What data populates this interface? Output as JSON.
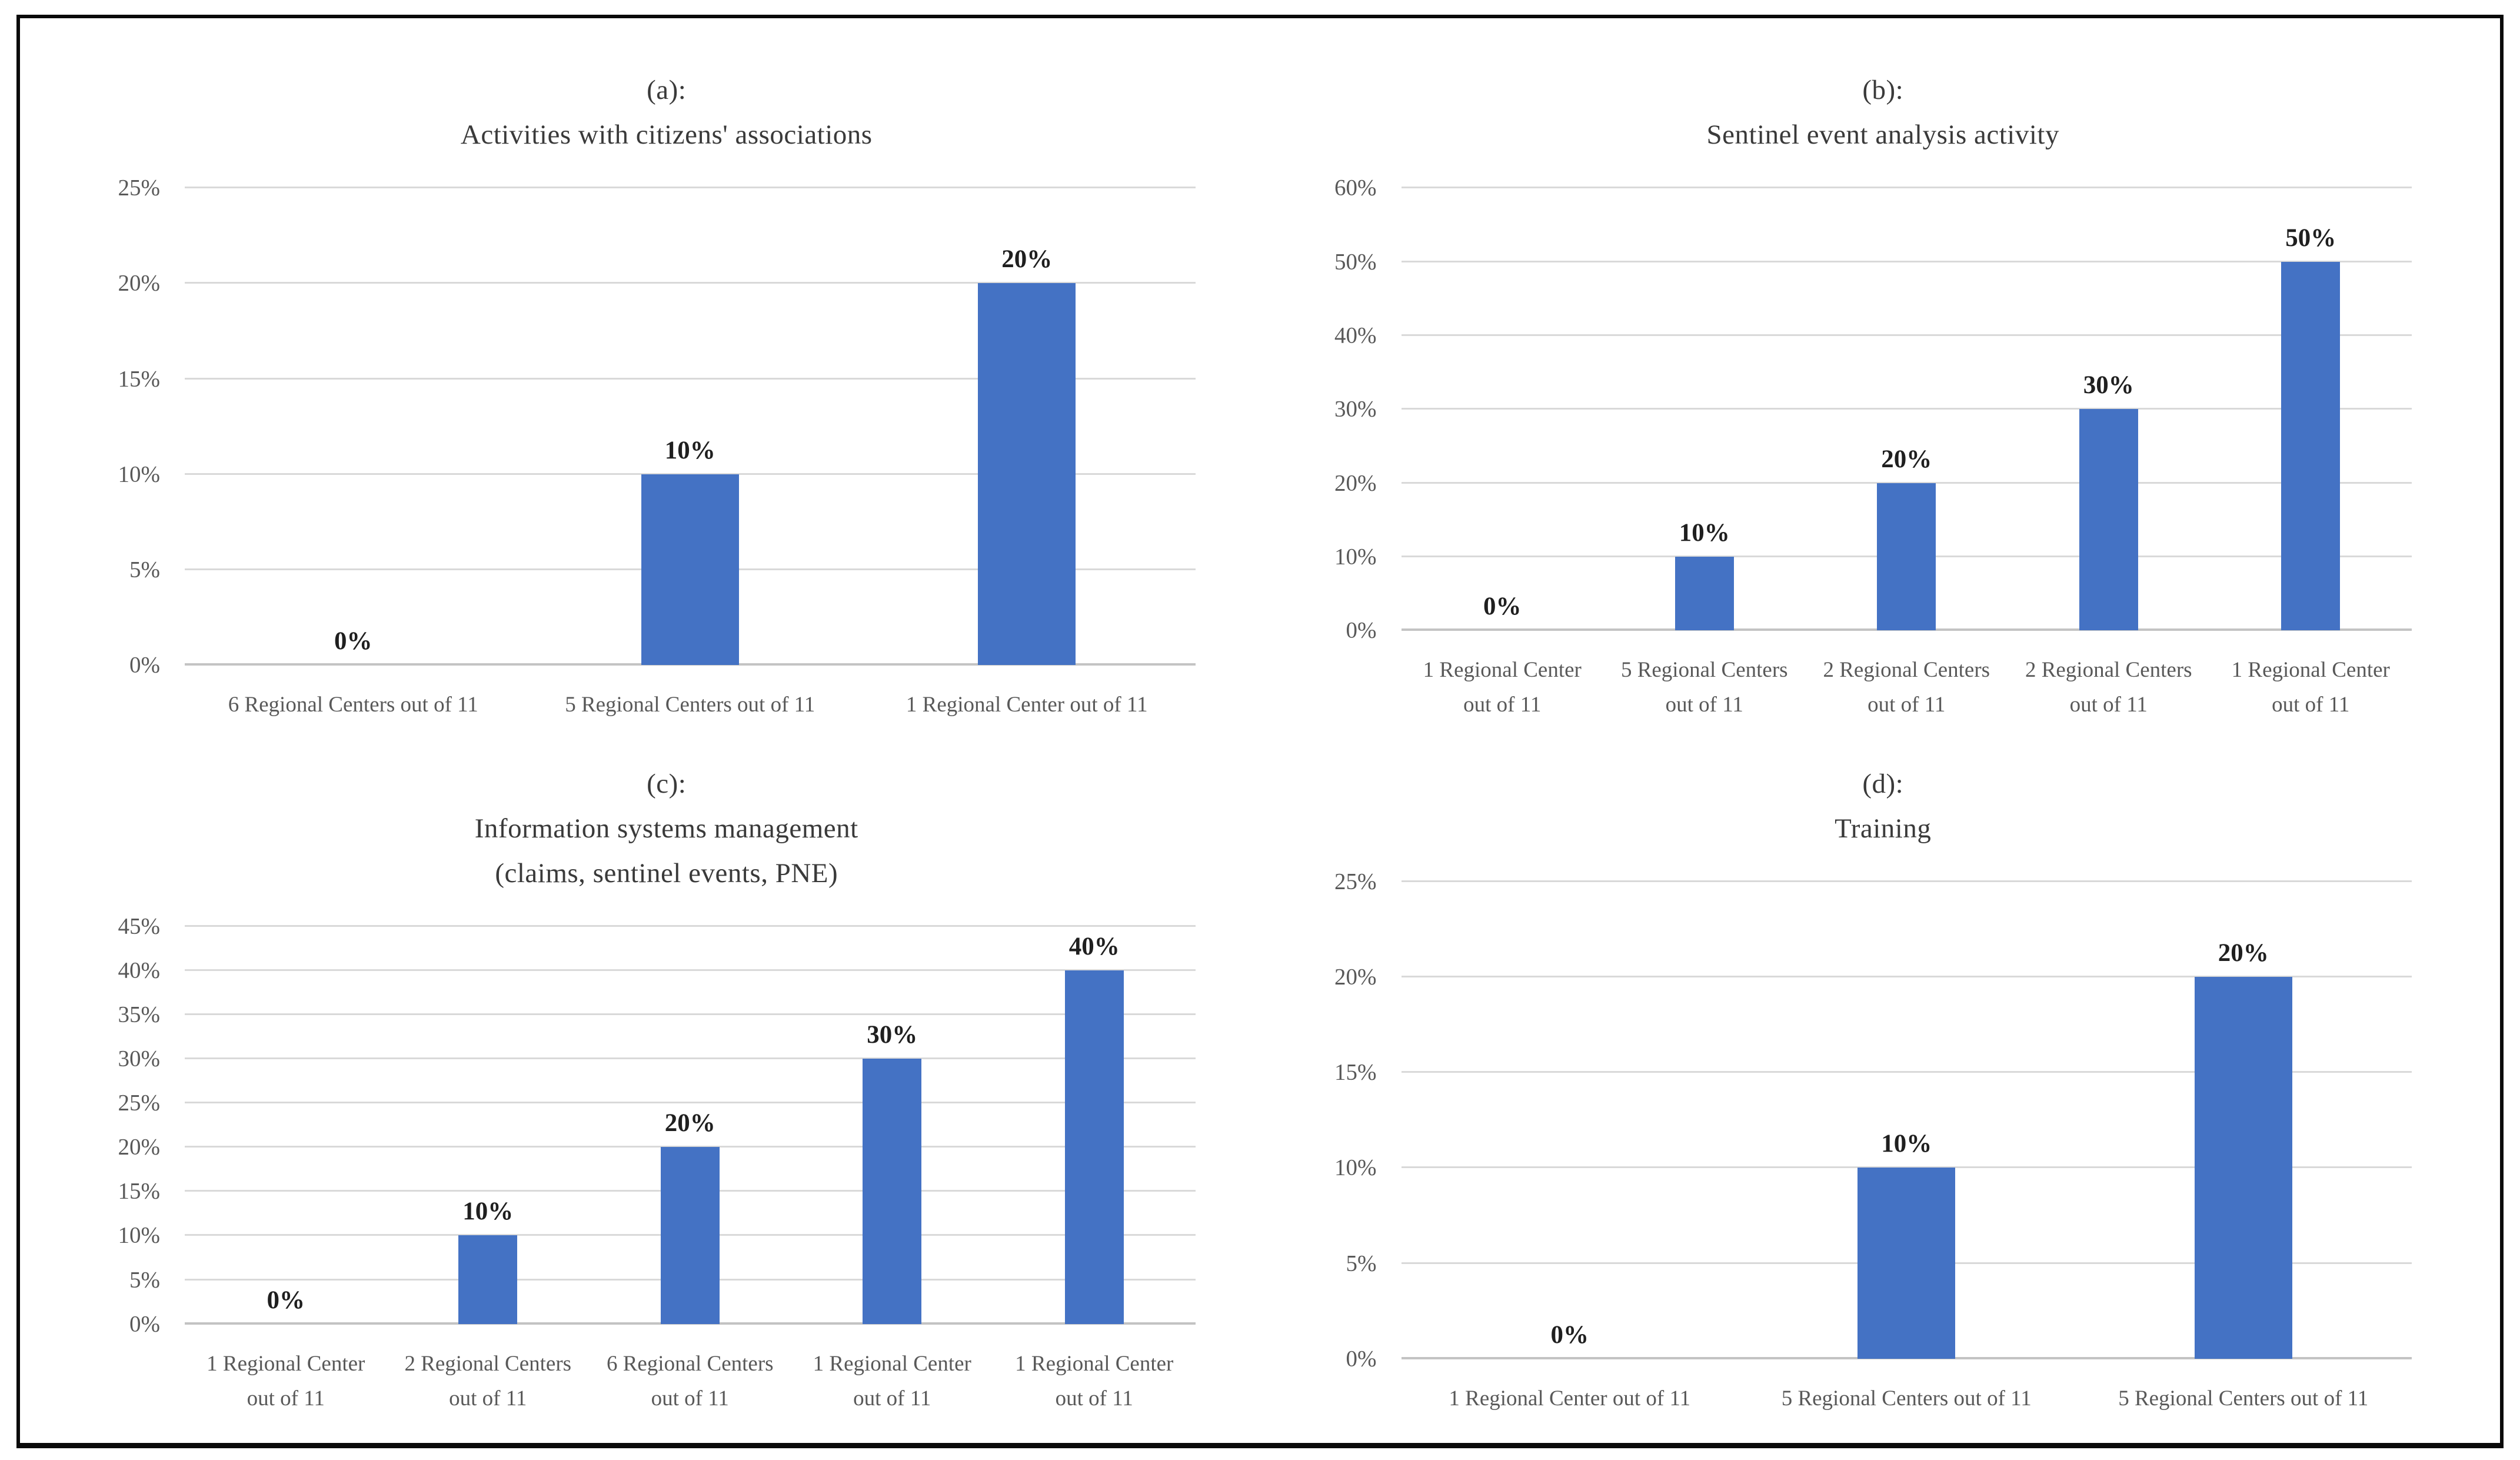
{
  "figure": {
    "background": "#ffffff",
    "border_color": "#0a0a0a"
  },
  "colors": {
    "bar": "#4472C4",
    "gridline": "#D9D9D9",
    "baseline": "#C3C3C3",
    "tick_text": "#595959",
    "category_text": "#595959",
    "value_text": "#1F1F1F",
    "title_text": "#3A3A3A"
  },
  "chart_data": [
    {
      "id": "a",
      "type": "bar",
      "title_lines": [
        "(a):",
        "Activities with citizens' associations"
      ],
      "ylabel": "",
      "xlabel": "",
      "ylim": [
        0,
        25
      ],
      "ytick_step": 5,
      "yticks": [
        "25%",
        "20%",
        "15%",
        "10%",
        "5%",
        "0%"
      ],
      "grid": true,
      "legend": "none",
      "categories": [
        [
          "6 Regional Centers out of 11"
        ],
        [
          "5 Regional Centers out of 11"
        ],
        [
          "1 Regional Center out of 11"
        ]
      ],
      "values": [
        0,
        10,
        20
      ],
      "value_labels": [
        "0%",
        "10%",
        "20%"
      ]
    },
    {
      "id": "b",
      "type": "bar",
      "title_lines": [
        "(b):",
        "Sentinel event analysis activity"
      ],
      "ylabel": "",
      "xlabel": "",
      "ylim": [
        0,
        60
      ],
      "ytick_step": 10,
      "yticks": [
        "60%",
        "50%",
        "40%",
        "30%",
        "20%",
        "10%",
        "0%"
      ],
      "grid": true,
      "legend": "none",
      "categories": [
        [
          "1 Regional Center",
          "out of 11"
        ],
        [
          "5 Regional Centers",
          "out of 11"
        ],
        [
          "2 Regional Centers",
          "out of 11"
        ],
        [
          "2 Regional Centers",
          "out of 11"
        ],
        [
          "1 Regional Center",
          "out of 11"
        ]
      ],
      "values": [
        0,
        10,
        20,
        30,
        50
      ],
      "value_labels": [
        "0%",
        "10%",
        "20%",
        "30%",
        "50%"
      ]
    },
    {
      "id": "c",
      "type": "bar",
      "title_lines": [
        "(c):",
        "Information systems management",
        "(claims, sentinel events, PNE)"
      ],
      "ylabel": "",
      "xlabel": "",
      "ylim": [
        0,
        45
      ],
      "ytick_step": 5,
      "yticks": [
        "45%",
        "40%",
        "35%",
        "30%",
        "25%",
        "20%",
        "15%",
        "10%",
        "5%",
        "0%"
      ],
      "grid": true,
      "legend": "none",
      "categories": [
        [
          "1 Regional Center",
          "out of 11"
        ],
        [
          "2 Regional Centers",
          "out of 11"
        ],
        [
          "6 Regional Centers",
          "out of 11"
        ],
        [
          "1 Regional Center",
          "out of 11"
        ],
        [
          "1 Regional Center",
          "out of 11"
        ]
      ],
      "values": [
        0,
        10,
        20,
        30,
        40
      ],
      "value_labels": [
        "0%",
        "10%",
        "20%",
        "30%",
        "40%"
      ]
    },
    {
      "id": "d",
      "type": "bar",
      "title_lines": [
        "(d):",
        "Training"
      ],
      "ylabel": "",
      "xlabel": "",
      "ylim": [
        0,
        25
      ],
      "ytick_step": 5,
      "yticks": [
        "25%",
        "20%",
        "15%",
        "10%",
        "5%",
        "0%"
      ],
      "grid": true,
      "legend": "none",
      "categories": [
        [
          "1 Regional Center out of 11"
        ],
        [
          "5 Regional Centers out of 11"
        ],
        [
          "5 Regional Centers out of 11"
        ]
      ],
      "values": [
        0,
        10,
        20
      ],
      "value_labels": [
        "0%",
        "10%",
        "20%"
      ]
    }
  ]
}
